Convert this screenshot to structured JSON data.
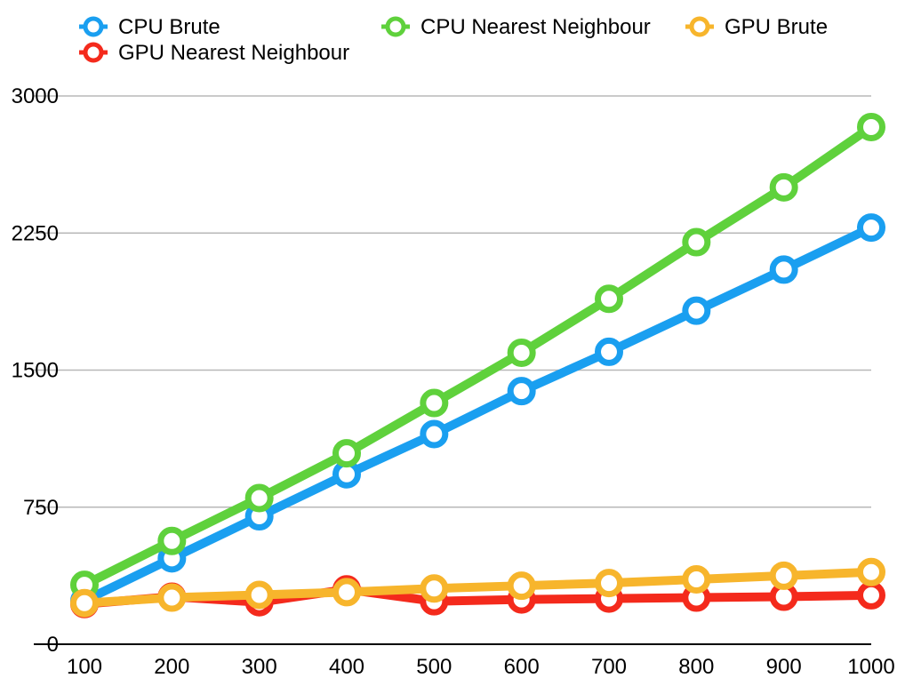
{
  "chart_data": {
    "type": "line",
    "title": "",
    "xlabel": "",
    "ylabel": "",
    "x": [
      100,
      200,
      300,
      400,
      500,
      600,
      700,
      800,
      900,
      1000
    ],
    "ylim": [
      0,
      3000
    ],
    "yticks": [
      0,
      750,
      1500,
      2250,
      3000
    ],
    "xticks": [
      100,
      200,
      300,
      400,
      500,
      600,
      700,
      800,
      900,
      1000
    ],
    "grid": true,
    "legend_position": "top",
    "series": [
      {
        "name": "CPU Brute",
        "color": "#1a9ff0",
        "values": [
          238,
          470,
          700,
          930,
          1150,
          1385,
          1600,
          1825,
          2050,
          2280
        ]
      },
      {
        "name": "GPU Nearest Neighbour",
        "color": "#f42a1c",
        "values": [
          220,
          260,
          230,
          300,
          235,
          245,
          250,
          255,
          260,
          268
        ]
      },
      {
        "name": "CPU Nearest Neighbour",
        "color": "#5fd13c",
        "values": [
          325,
          565,
          800,
          1045,
          1320,
          1595,
          1890,
          2200,
          2500,
          2830
        ]
      },
      {
        "name": "GPU Brute",
        "color": "#f7b52c",
        "values": [
          225,
          255,
          270,
          285,
          305,
          320,
          335,
          355,
          375,
          395
        ]
      }
    ]
  }
}
